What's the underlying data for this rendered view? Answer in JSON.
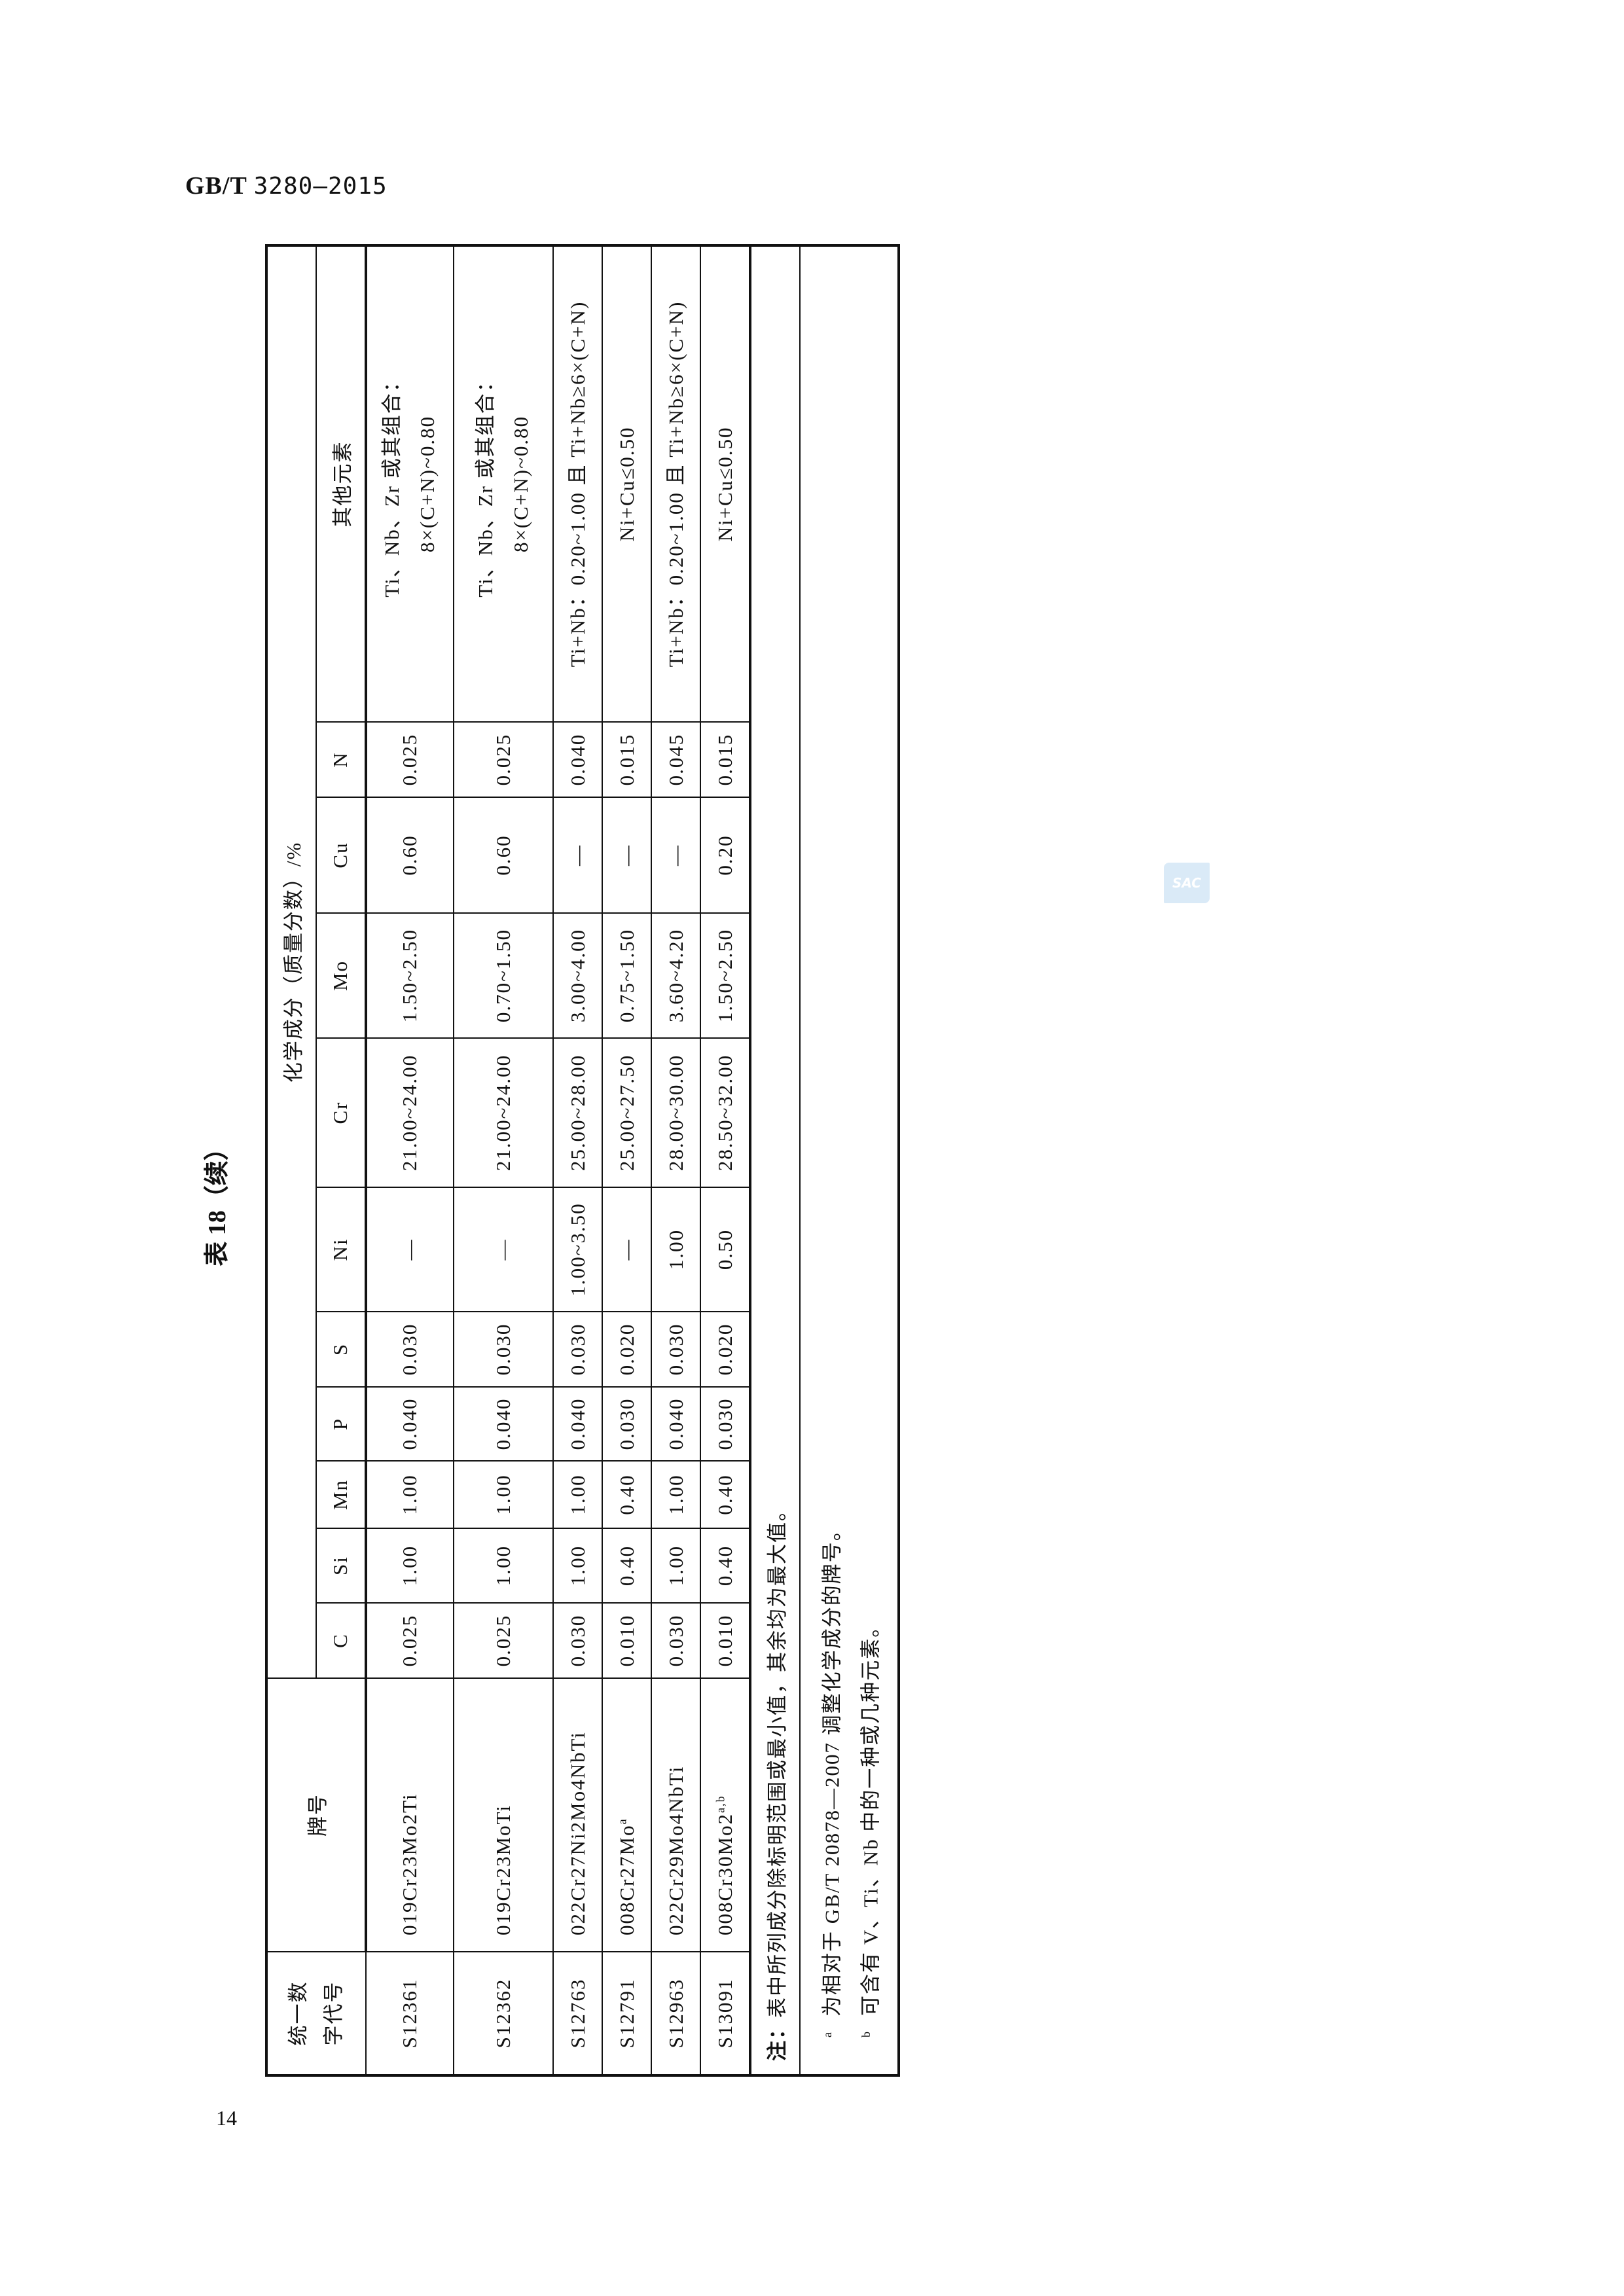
{
  "header": {
    "standard_prefix": "GB/T",
    "standard_number": "3280—2015"
  },
  "table_title": "表 18（续）",
  "page_number": "14",
  "watermark": {
    "text": "SAC",
    "color": "#d6e8f7"
  },
  "table": {
    "col_code": "统一数字代号",
    "col_grade": "牌号",
    "group_header": "化学成分（质量分数）/%",
    "elements": [
      "C",
      "Si",
      "Mn",
      "P",
      "S",
      "Ni",
      "Cr",
      "Mo",
      "Cu",
      "N"
    ],
    "col_other": "其他元素",
    "rows": [
      {
        "code": "S12361",
        "grade": "019Cr23Mo2Ti",
        "sup": "",
        "values": [
          "0.025",
          "1.00",
          "1.00",
          "0.040",
          "0.030",
          "—",
          "21.00~24.00",
          "1.50~2.50",
          "0.60",
          "0.025"
        ],
        "other": [
          "Ti、Nb、Zr 或其组合：",
          "8×(C+N)~0.80"
        ]
      },
      {
        "code": "S12362",
        "grade": "019Cr23MoTi",
        "sup": "",
        "values": [
          "0.025",
          "1.00",
          "1.00",
          "0.040",
          "0.030",
          "—",
          "21.00~24.00",
          "0.70~1.50",
          "0.60",
          "0.025"
        ],
        "other": [
          "Ti、Nb、Zr 或其组合：",
          "8×(C+N)~0.80"
        ]
      },
      {
        "code": "S12763",
        "grade": "022Cr27Ni2Mo4NbTi",
        "sup": "",
        "values": [
          "0.030",
          "1.00",
          "1.00",
          "0.040",
          "0.030",
          "1.00~3.50",
          "25.00~28.00",
          "3.00~4.00",
          "—",
          "0.040"
        ],
        "other": [
          "Ti+Nb：0.20~1.00 且 Ti+Nb≥6×(C+N)"
        ]
      },
      {
        "code": "S12791",
        "grade": "008Cr27Mo",
        "sup": "a",
        "values": [
          "0.010",
          "0.40",
          "0.40",
          "0.030",
          "0.020",
          "—",
          "25.00~27.50",
          "0.75~1.50",
          "—",
          "0.015"
        ],
        "other": [
          "Ni+Cu≤0.50"
        ]
      },
      {
        "code": "S12963",
        "grade": "022Cr29Mo4NbTi",
        "sup": "",
        "values": [
          "0.030",
          "1.00",
          "1.00",
          "0.040",
          "0.030",
          "1.00",
          "28.00~30.00",
          "3.60~4.20",
          "—",
          "0.045"
        ],
        "other": [
          "Ti+Nb：0.20~1.00 且 Ti+Nb≥6×(C+N)"
        ]
      },
      {
        "code": "S13091",
        "grade": "008Cr30Mo2",
        "sup": "a,b",
        "values": [
          "0.010",
          "0.40",
          "0.40",
          "0.030",
          "0.020",
          "0.50",
          "28.50~32.00",
          "1.50~2.50",
          "0.20",
          "0.015"
        ],
        "other": [
          "Ni+Cu≤0.50"
        ]
      }
    ],
    "note_label": "注：",
    "note_text": "表中所列成分除标明范围或最小值，其余均为最大值。",
    "footnotes": [
      {
        "mark": "a",
        "text": "为相对于 GB/T 20878—2007 调整化学成分的牌号。"
      },
      {
        "mark": "b",
        "text": "可含有 V、Ti、Nb 中的一种或几种元素。"
      }
    ]
  }
}
